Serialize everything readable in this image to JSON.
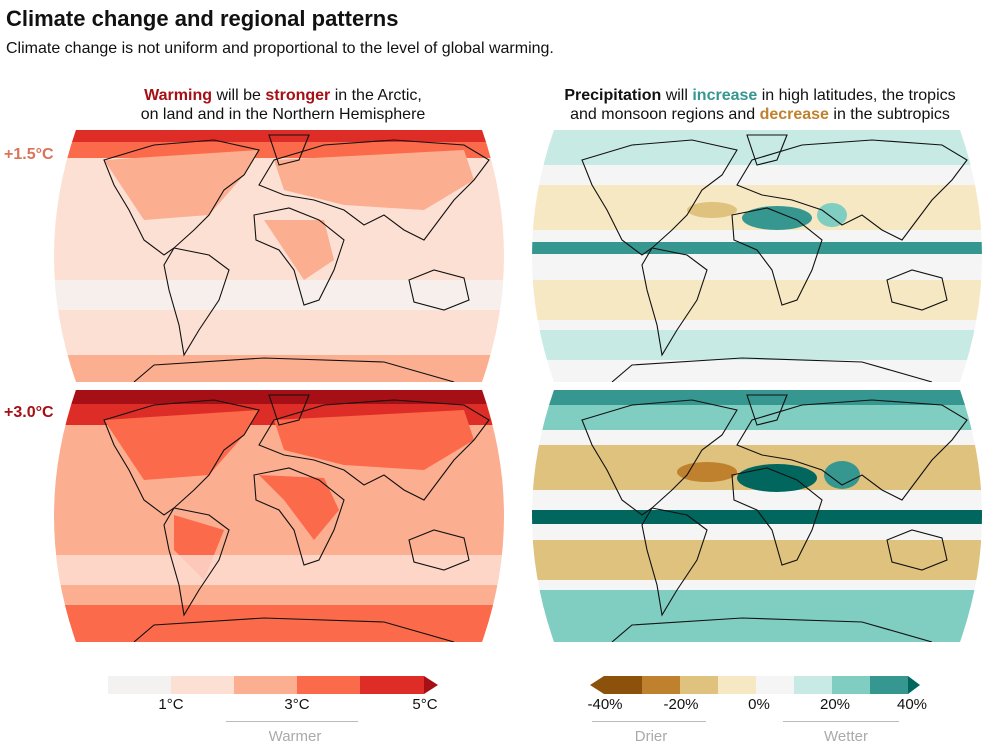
{
  "title": "Climate change and regional patterns",
  "subtitle": "Climate change is not uniform and proportional to the level of global warming.",
  "left_header": {
    "w1": "Warming",
    "t1": " will be ",
    "w2": "stronger",
    "t2": " in the Arctic,",
    "line2": "on land and in the Northern Hemisphere"
  },
  "right_header": {
    "w1": "Precipitation",
    "t1": " will ",
    "w2": "increase",
    "t2": " in high latitudes, the tropics",
    "t3": "and monsoon regions and ",
    "w3": "decrease",
    "t4": " in the subtropics"
  },
  "levels": [
    "+1.5°C",
    "+3.0°C"
  ],
  "temperature_legend": {
    "ticks": [
      "1°C",
      "3°C",
      "5°C"
    ],
    "direction": "Warmer",
    "colors": [
      "#f4f2f1",
      "#fde0d4",
      "#fcae91",
      "#fb6a4a",
      "#de2d26",
      "#a50f15"
    ]
  },
  "precip_legend": {
    "ticks": [
      "-40%",
      "-20%",
      "0%",
      "20%",
      "40%"
    ],
    "left_direction": "Drier",
    "right_direction": "Wetter",
    "colors": [
      "#8c510a",
      "#bf812d",
      "#dfc27d",
      "#f6e8c3",
      "#f5f5f5",
      "#c7eae5",
      "#80cdc1",
      "#35978f",
      "#01665e"
    ]
  }
}
